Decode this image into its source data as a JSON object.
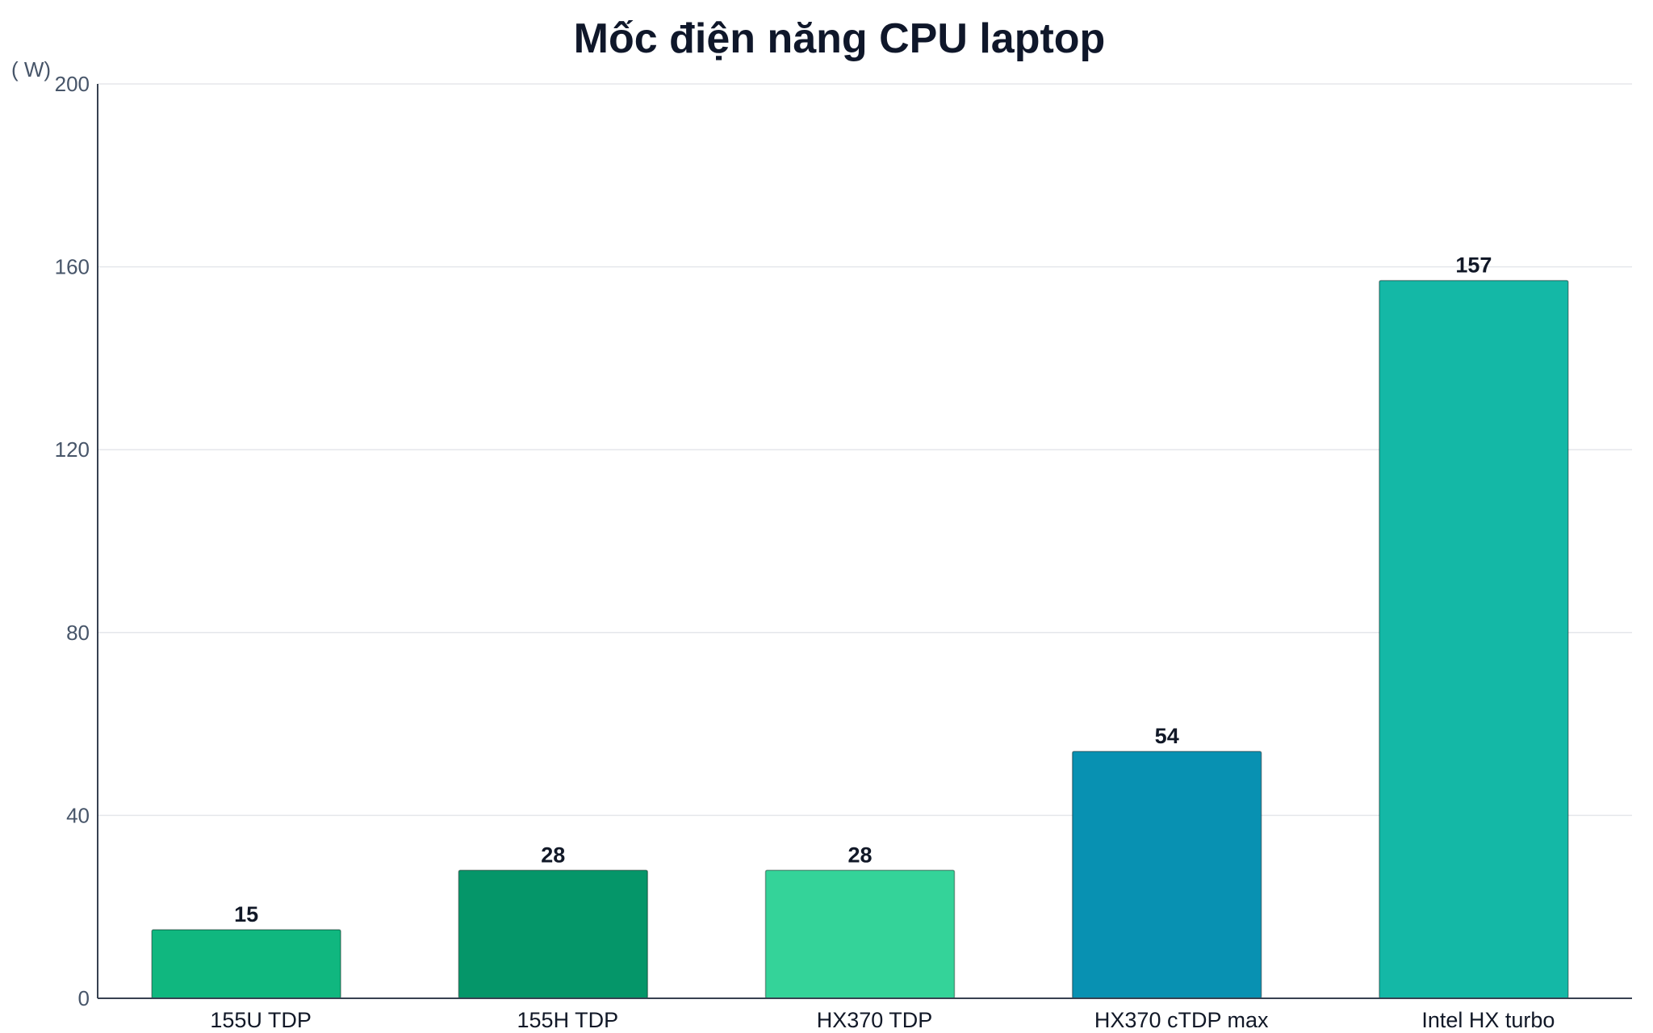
{
  "chart_data": {
    "type": "bar",
    "title": "Mốc điện năng CPU laptop",
    "ylabel": "( W)",
    "xlabel": "",
    "categories": [
      "155U TDP",
      "155H TDP",
      "HX370 TDP",
      "HX370 cTDP max",
      "Intel HX turbo"
    ],
    "values": [
      15,
      28,
      28,
      54,
      157
    ],
    "value_labels": [
      "15",
      "28",
      "28",
      "54",
      "157"
    ],
    "colors": [
      "#10b77f",
      "#059669",
      "#34d399",
      "#0891b2",
      "#14b8a6"
    ],
    "ylim": [
      0,
      200
    ],
    "yticks": [
      0,
      40,
      80,
      120,
      160,
      200
    ],
    "ytick_labels": [
      "0",
      "40",
      "80",
      "120",
      "160",
      "200"
    ],
    "grid": true,
    "legend": "none"
  }
}
